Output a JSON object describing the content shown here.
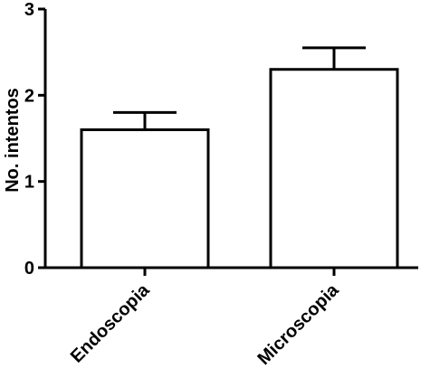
{
  "chart_data": {
    "type": "bar",
    "title": "",
    "xlabel": "",
    "ylabel": "No. intentos",
    "categories": [
      "Endoscopia",
      "Microscopia"
    ],
    "values": [
      1.6,
      2.3
    ],
    "error_upper": [
      1.8,
      2.55
    ],
    "ylim": [
      0,
      3
    ],
    "yticks": [
      0,
      1,
      2,
      3
    ],
    "ytick_labels": [
      "0",
      "1",
      "2",
      "3"
    ],
    "grid": false,
    "legend": "none",
    "bar_fill": "#ffffff",
    "bar_stroke": "#000000"
  }
}
